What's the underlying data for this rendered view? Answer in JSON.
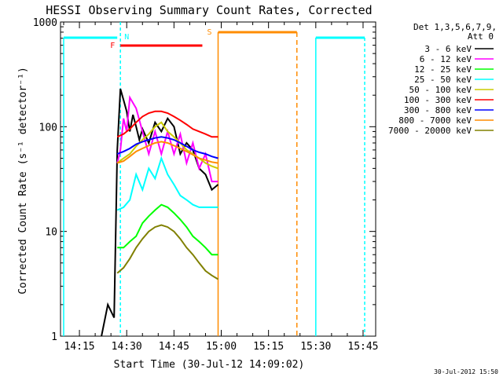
{
  "chart_data": {
    "type": "line",
    "title": "HESSI Observing Summary Count Rates, Corrected",
    "xlabel": "Start Time (30-Jul-12 14:09:02)",
    "ylabel": "Corrected Count Rate (s⁻¹ detector⁻¹)",
    "y_scale": "log",
    "ylim": [
      1,
      1000
    ],
    "xlim": [
      "14:09",
      "15:49"
    ],
    "x_tick_labels": [
      "14:15",
      "14:30",
      "14:45",
      "15:00",
      "15:15",
      "15:30",
      "15:45"
    ],
    "y_tick_labels": [
      "1",
      "10",
      "100",
      "1000"
    ],
    "legend_header": [
      "Det 1,3,5,6,7,9,",
      "Att 0"
    ],
    "legend_placement": "right",
    "footer_date": "30-Jul-2012 15:50",
    "markers": [
      {
        "label": "N",
        "time": "14:28",
        "color": "#00ffff"
      },
      {
        "label": "F",
        "time": "14:28",
        "color": "#ff0000"
      },
      {
        "label": "S",
        "time": "14:59",
        "color": "#ff8c00"
      }
    ],
    "series": [
      {
        "name": "3 - 6 keV",
        "color": "#000000",
        "points": [
          [
            "14:22",
            1
          ],
          [
            "14:24",
            2
          ],
          [
            "14:26",
            1.5
          ],
          [
            "14:27",
            60
          ],
          [
            "14:28",
            230
          ],
          [
            "14:29",
            180
          ],
          [
            "14:30",
            140
          ],
          [
            "14:31",
            90
          ],
          [
            "14:32",
            130
          ],
          [
            "14:33",
            100
          ],
          [
            "14:34",
            75
          ],
          [
            "14:35",
            95
          ],
          [
            "14:37",
            70
          ],
          [
            "14:39",
            110
          ],
          [
            "14:41",
            90
          ],
          [
            "14:43",
            120
          ],
          [
            "14:45",
            100
          ],
          [
            "14:47",
            55
          ],
          [
            "14:49",
            70
          ],
          [
            "14:51",
            60
          ],
          [
            "14:53",
            40
          ],
          [
            "14:55",
            35
          ],
          [
            "14:57",
            25
          ],
          [
            "14:59",
            28
          ]
        ]
      },
      {
        "name": "6 - 12 keV",
        "color": "#ff00ff",
        "points": [
          [
            "14:27",
            45
          ],
          [
            "14:28",
            60
          ],
          [
            "14:29",
            120
          ],
          [
            "14:30",
            90
          ],
          [
            "14:31",
            190
          ],
          [
            "14:33",
            150
          ],
          [
            "14:35",
            90
          ],
          [
            "14:37",
            55
          ],
          [
            "14:39",
            90
          ],
          [
            "14:41",
            55
          ],
          [
            "14:43",
            90
          ],
          [
            "14:45",
            55
          ],
          [
            "14:47",
            85
          ],
          [
            "14:49",
            45
          ],
          [
            "14:51",
            70
          ],
          [
            "14:53",
            40
          ],
          [
            "14:55",
            55
          ],
          [
            "14:57",
            30
          ],
          [
            "14:59",
            30
          ]
        ]
      },
      {
        "name": "12 - 25 keV",
        "color": "#00ff00",
        "points": [
          [
            "14:27",
            7
          ],
          [
            "14:29",
            7
          ],
          [
            "14:31",
            8
          ],
          [
            "14:33",
            9
          ],
          [
            "14:35",
            12
          ],
          [
            "14:37",
            14
          ],
          [
            "14:39",
            16
          ],
          [
            "14:41",
            18
          ],
          [
            "14:43",
            17
          ],
          [
            "14:45",
            15
          ],
          [
            "14:47",
            13
          ],
          [
            "14:49",
            11
          ],
          [
            "14:51",
            9
          ],
          [
            "14:53",
            8
          ],
          [
            "14:55",
            7
          ],
          [
            "14:57",
            6
          ],
          [
            "14:59",
            6
          ]
        ]
      },
      {
        "name": "25 - 50 keV",
        "color": "#00ffff",
        "points": [
          [
            "14:27",
            16
          ],
          [
            "14:29",
            17
          ],
          [
            "14:31",
            20
          ],
          [
            "14:33",
            35
          ],
          [
            "14:35",
            25
          ],
          [
            "14:37",
            40
          ],
          [
            "14:39",
            32
          ],
          [
            "14:41",
            50
          ],
          [
            "14:43",
            35
          ],
          [
            "14:45",
            28
          ],
          [
            "14:47",
            22
          ],
          [
            "14:49",
            20
          ],
          [
            "14:51",
            18
          ],
          [
            "14:53",
            17
          ],
          [
            "14:55",
            17
          ],
          [
            "14:57",
            17
          ],
          [
            "14:59",
            17
          ]
        ]
      },
      {
        "name": "50 - 100 keV",
        "color": "#cccc00",
        "points": [
          [
            "14:27",
            45
          ],
          [
            "14:29",
            50
          ],
          [
            "14:31",
            55
          ],
          [
            "14:33",
            65
          ],
          [
            "14:35",
            75
          ],
          [
            "14:37",
            85
          ],
          [
            "14:39",
            100
          ],
          [
            "14:41",
            110
          ],
          [
            "14:43",
            90
          ],
          [
            "14:45",
            80
          ],
          [
            "14:47",
            70
          ],
          [
            "14:49",
            60
          ],
          [
            "14:51",
            55
          ],
          [
            "14:53",
            50
          ],
          [
            "14:55",
            45
          ],
          [
            "14:57",
            42
          ],
          [
            "14:59",
            40
          ]
        ]
      },
      {
        "name": "100 - 300 keV",
        "color": "#ff0000",
        "points": [
          [
            "14:27",
            80
          ],
          [
            "14:29",
            85
          ],
          [
            "14:31",
            95
          ],
          [
            "14:33",
            110
          ],
          [
            "14:35",
            125
          ],
          [
            "14:37",
            135
          ],
          [
            "14:39",
            140
          ],
          [
            "14:41",
            140
          ],
          [
            "14:43",
            135
          ],
          [
            "14:45",
            125
          ],
          [
            "14:47",
            115
          ],
          [
            "14:49",
            105
          ],
          [
            "14:51",
            95
          ],
          [
            "14:53",
            90
          ],
          [
            "14:55",
            85
          ],
          [
            "14:57",
            80
          ],
          [
            "14:59",
            80
          ]
        ]
      },
      {
        "name": "300 - 800 keV",
        "color": "#0000ff",
        "points": [
          [
            "14:27",
            55
          ],
          [
            "14:29",
            58
          ],
          [
            "14:31",
            62
          ],
          [
            "14:33",
            68
          ],
          [
            "14:35",
            72
          ],
          [
            "14:37",
            75
          ],
          [
            "14:39",
            78
          ],
          [
            "14:41",
            80
          ],
          [
            "14:43",
            78
          ],
          [
            "14:45",
            75
          ],
          [
            "14:47",
            70
          ],
          [
            "14:49",
            65
          ],
          [
            "14:51",
            60
          ],
          [
            "14:53",
            57
          ],
          [
            "14:55",
            55
          ],
          [
            "14:57",
            52
          ],
          [
            "14:59",
            50
          ]
        ]
      },
      {
        "name": "800 - 7000 keV",
        "color": "#ff8c00",
        "points": [
          [
            "14:27",
            45
          ],
          [
            "14:29",
            47
          ],
          [
            "14:31",
            52
          ],
          [
            "14:33",
            58
          ],
          [
            "14:35",
            62
          ],
          [
            "14:37",
            66
          ],
          [
            "14:39",
            70
          ],
          [
            "14:41",
            72
          ],
          [
            "14:43",
            70
          ],
          [
            "14:45",
            66
          ],
          [
            "14:47",
            62
          ],
          [
            "14:49",
            58
          ],
          [
            "14:51",
            54
          ],
          [
            "14:53",
            50
          ],
          [
            "14:55",
            48
          ],
          [
            "14:57",
            46
          ],
          [
            "14:59",
            45
          ]
        ]
      },
      {
        "name": "7000 - 20000 keV",
        "color": "#808000",
        "points": [
          [
            "14:27",
            4
          ],
          [
            "14:29",
            4.5
          ],
          [
            "14:31",
            5.5
          ],
          [
            "14:33",
            7
          ],
          [
            "14:35",
            8.5
          ],
          [
            "14:37",
            10
          ],
          [
            "14:39",
            11
          ],
          [
            "14:41",
            11.5
          ],
          [
            "14:43",
            11
          ],
          [
            "14:45",
            10
          ],
          [
            "14:47",
            8.5
          ],
          [
            "14:49",
            7
          ],
          [
            "14:51",
            6
          ],
          [
            "14:53",
            5
          ],
          [
            "14:55",
            4.2
          ],
          [
            "14:57",
            3.8
          ],
          [
            "14:59",
            3.5
          ]
        ]
      }
    ]
  }
}
